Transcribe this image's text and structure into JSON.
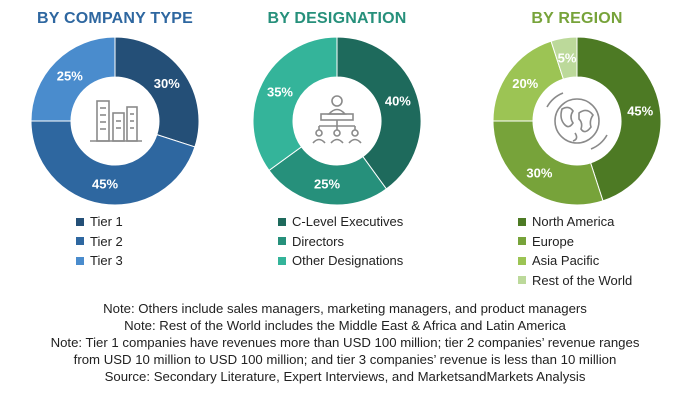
{
  "chart_data": [
    {
      "type": "pie",
      "title": "BY COMPANY TYPE",
      "categories": [
        "Tier 1",
        "Tier 2",
        "Tier 3"
      ],
      "values": [
        30,
        45,
        25
      ],
      "labels": [
        "30%",
        "45%",
        "25%"
      ],
      "colors": [
        "#244f77",
        "#2e67a0",
        "#4a8ccd"
      ],
      "center_icon": "buildings-icon",
      "legend": "bottom"
    },
    {
      "type": "pie",
      "title": "BY DESIGNATION",
      "categories": [
        "C-Level Executives",
        "Directors",
        "Other Designations"
      ],
      "values": [
        40,
        25,
        35
      ],
      "labels": [
        "40%",
        "25%",
        "35%"
      ],
      "colors": [
        "#1e6a5c",
        "#26907b",
        "#34b49a"
      ],
      "center_icon": "org-chart-icon",
      "legend": "bottom"
    },
    {
      "type": "pie",
      "title": "BY REGION",
      "categories": [
        "North America",
        "Europe",
        "Asia Pacific",
        "Rest of the World"
      ],
      "values": [
        45,
        30,
        20,
        5
      ],
      "labels": [
        "45%",
        "30%",
        "20%",
        "5%"
      ],
      "colors": [
        "#4d7a24",
        "#77a33a",
        "#9cc454",
        "#bcd99a"
      ],
      "center_icon": "globe-icon",
      "legend": "bottom"
    }
  ],
  "notes": [
    "Note: Others include sales managers, marketing managers, and product managers",
    "Note: Rest of the World includes the Middle East & Africa and Latin America",
    "Note: Tier 1 companies have revenues more than USD 100 million; tier 2 companies’ revenue ranges",
    "from USD 10 million to USD 100 million; and tier 3 companies’ revenue is less than 10 million",
    "Source: Secondary Literature, Expert Interviews, and MarketsandMarkets Analysis"
  ]
}
